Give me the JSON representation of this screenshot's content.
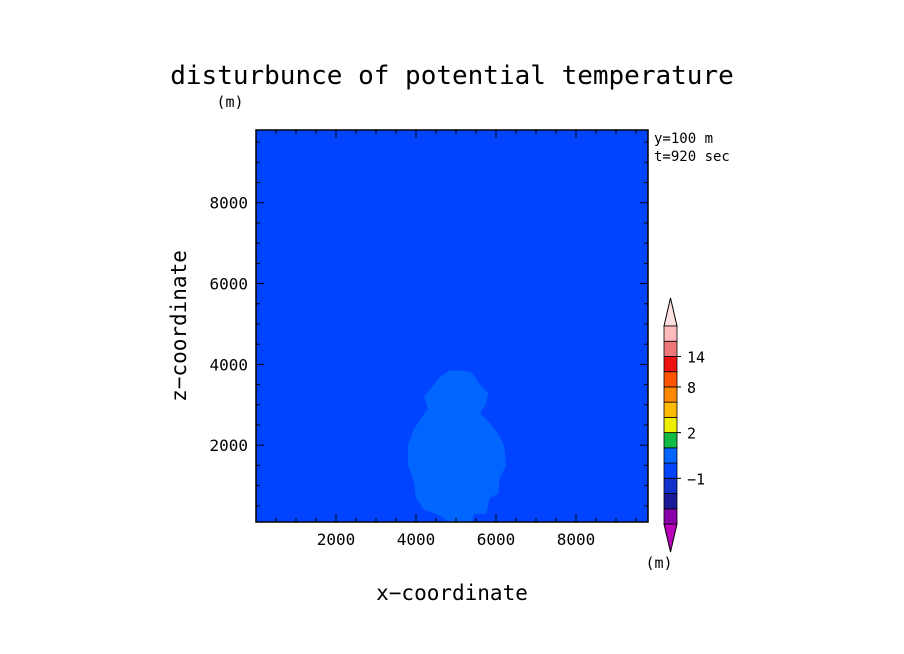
{
  "chart_data": {
    "type": "heatmap",
    "title": "disturbunce of potential temperature",
    "unit_label": "(m)",
    "xlabel": "x−coordinate",
    "ylabel": "z−coordinate",
    "xlim": [
      0,
      9800
    ],
    "ylim": [
      100,
      9800
    ],
    "x_ticks": [
      2000,
      4000,
      6000,
      8000
    ],
    "y_ticks": [
      2000,
      4000,
      6000,
      8000
    ],
    "x_minor_step": 500,
    "y_minor_step": 500,
    "annotations": [
      "y=100 m",
      "t=920 sec"
    ],
    "field": {
      "background_level": "-1 to 0",
      "background_color": "#0044ff",
      "anomaly_level": "0 to 1",
      "anomaly_color": "#0066ff",
      "anomaly_outline": [
        [
          4800,
          100
        ],
        [
          5400,
          100
        ],
        [
          5450,
          300
        ],
        [
          5750,
          300
        ],
        [
          5850,
          700
        ],
        [
          6050,
          800
        ],
        [
          6100,
          1200
        ],
        [
          6250,
          1500
        ],
        [
          6200,
          2000
        ],
        [
          6050,
          2300
        ],
        [
          5800,
          2600
        ],
        [
          5600,
          2800
        ],
        [
          5750,
          3000
        ],
        [
          5800,
          3300
        ],
        [
          5600,
          3500
        ],
        [
          5400,
          3800
        ],
        [
          5150,
          3850
        ],
        [
          4850,
          3850
        ],
        [
          4600,
          3700
        ],
        [
          4450,
          3500
        ],
        [
          4200,
          3200
        ],
        [
          4300,
          2900
        ],
        [
          4150,
          2700
        ],
        [
          3950,
          2400
        ],
        [
          3800,
          2000
        ],
        [
          3800,
          1500
        ],
        [
          3950,
          1100
        ],
        [
          4000,
          700
        ],
        [
          4200,
          400
        ],
        [
          4500,
          300
        ],
        [
          4700,
          200
        ]
      ]
    },
    "colorbar": {
      "levels": [
        "-4",
        "-3",
        "-2",
        "-1",
        "0",
        "1",
        "2",
        "3",
        "5",
        "8",
        "11",
        "14",
        "17"
      ],
      "tick_labels": [
        {
          "label": "−1",
          "index": 3
        },
        {
          "label": "2",
          "index": 6
        },
        {
          "label": "8",
          "index": 9
        },
        {
          "label": "14",
          "index": 11
        }
      ],
      "colors": [
        "#8800aa",
        "#1a1a99",
        "#1133cc",
        "#0044ff",
        "#0066ff",
        "#11bb44",
        "#eeee00",
        "#ffbb00",
        "#ff8800",
        "#ff5500",
        "#ee1111",
        "#ee7777",
        "#ffbbbb"
      ],
      "under_color": "#bb00bb",
      "over_color": "#ffe0e0",
      "unit_label": "(m)"
    }
  }
}
